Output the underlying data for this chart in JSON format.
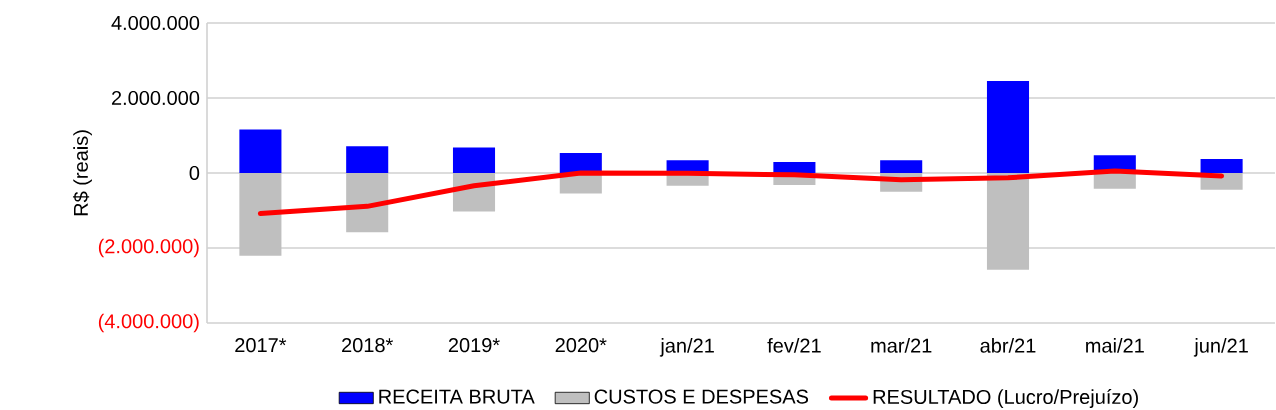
{
  "chart_data": {
    "type": "bar",
    "ylabel": "R$ (reais)",
    "categories": [
      "2017*",
      "2018*",
      "2019*",
      "2020*",
      "jan/21",
      "fev/21",
      "mar/21",
      "abr/21",
      "mai/21",
      "jun/21"
    ],
    "series": [
      {
        "name": "RECEITA BRUTA",
        "color": "#0000ff",
        "values": [
          1160000,
          710000,
          680000,
          530000,
          340000,
          290000,
          340000,
          2450000,
          470000,
          370000
        ]
      },
      {
        "name": "CUSTOS E DESPESAS",
        "color": "#bfbfbf",
        "values": [
          -2210000,
          -1580000,
          -1030000,
          -550000,
          -340000,
          -320000,
          -500000,
          -2580000,
          -420000,
          -450000
        ]
      },
      {
        "name": "RESULTADO (Lucro/Prejuízo)",
        "type": "line",
        "color": "#ff0000",
        "values": [
          -1080000,
          -890000,
          -340000,
          0,
          -10000,
          -50000,
          -180000,
          -130000,
          50000,
          -80000
        ]
      }
    ],
    "ylim": [
      -4000000,
      4000000
    ],
    "yticks": [
      {
        "value": -4000000,
        "label": "(4.000.000)"
      },
      {
        "value": -2000000,
        "label": "(2.000.000)"
      },
      {
        "value": 0,
        "label": "0"
      },
      {
        "value": 2000000,
        "label": "2.000.000"
      },
      {
        "value": 4000000,
        "label": "4.000.000"
      }
    ],
    "grid": "y",
    "legend": "bottom",
    "stacked": true
  }
}
